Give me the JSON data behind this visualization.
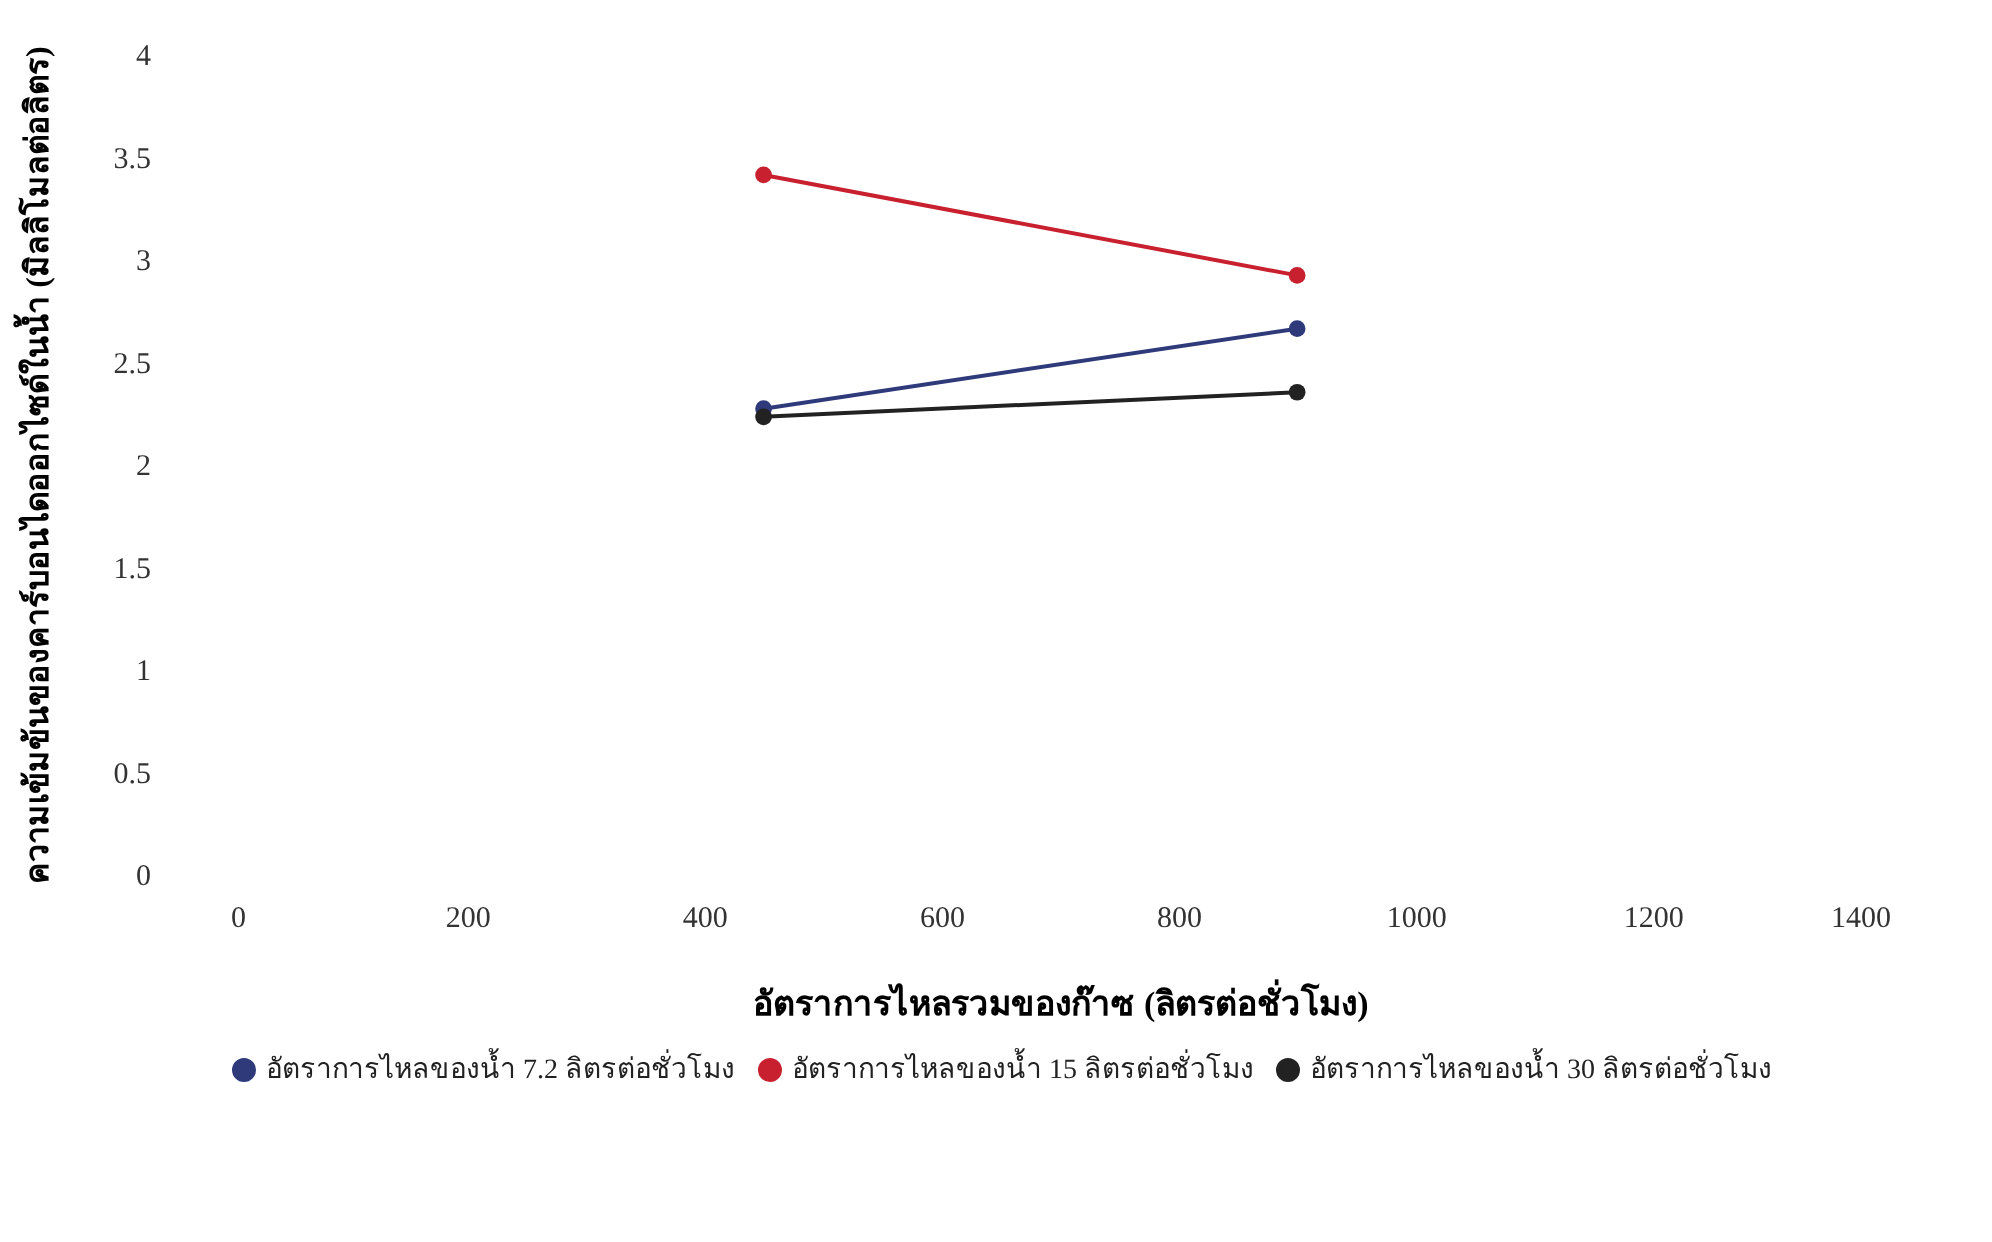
{
  "chart_data": {
    "type": "line",
    "xlabel": "อัตราการไหลรวมของก๊าซ (ลิตรต่อชั่วโมง)",
    "ylabel": "ความเข้มข้นของคาร์บอนไดออกไซด์ในน้ำ (มิลลิโมลต่อลิตร)",
    "x": [
      450,
      900
    ],
    "series": [
      {
        "name": "อัตราการไหลของน้ำ 7.2 ลิตรต่อชั่วโมง",
        "color": "#2e3a7a",
        "values": [
          2.27,
          2.66
        ]
      },
      {
        "name": "อัตราการไหลของน้ำ 15 ลิตรต่อชั่วโมง",
        "color": "#c8202f",
        "values": [
          3.41,
          2.92
        ]
      },
      {
        "name": "อัตราการไหลของน้ำ 30 ลิตรต่อชั่วโมง",
        "color": "#222222",
        "values": [
          2.23,
          2.35
        ]
      }
    ],
    "xlim": [
      0,
      1400
    ],
    "xticks": [
      0,
      200,
      400,
      600,
      800,
      1000,
      1200,
      1400
    ],
    "ylim": [
      0,
      4
    ],
    "yticks": [
      0,
      0.5,
      1,
      1.5,
      2,
      2.5,
      3,
      3.5,
      4
    ],
    "grid": false,
    "legend": "bottom",
    "marker": "circle",
    "line_style": "solid"
  }
}
